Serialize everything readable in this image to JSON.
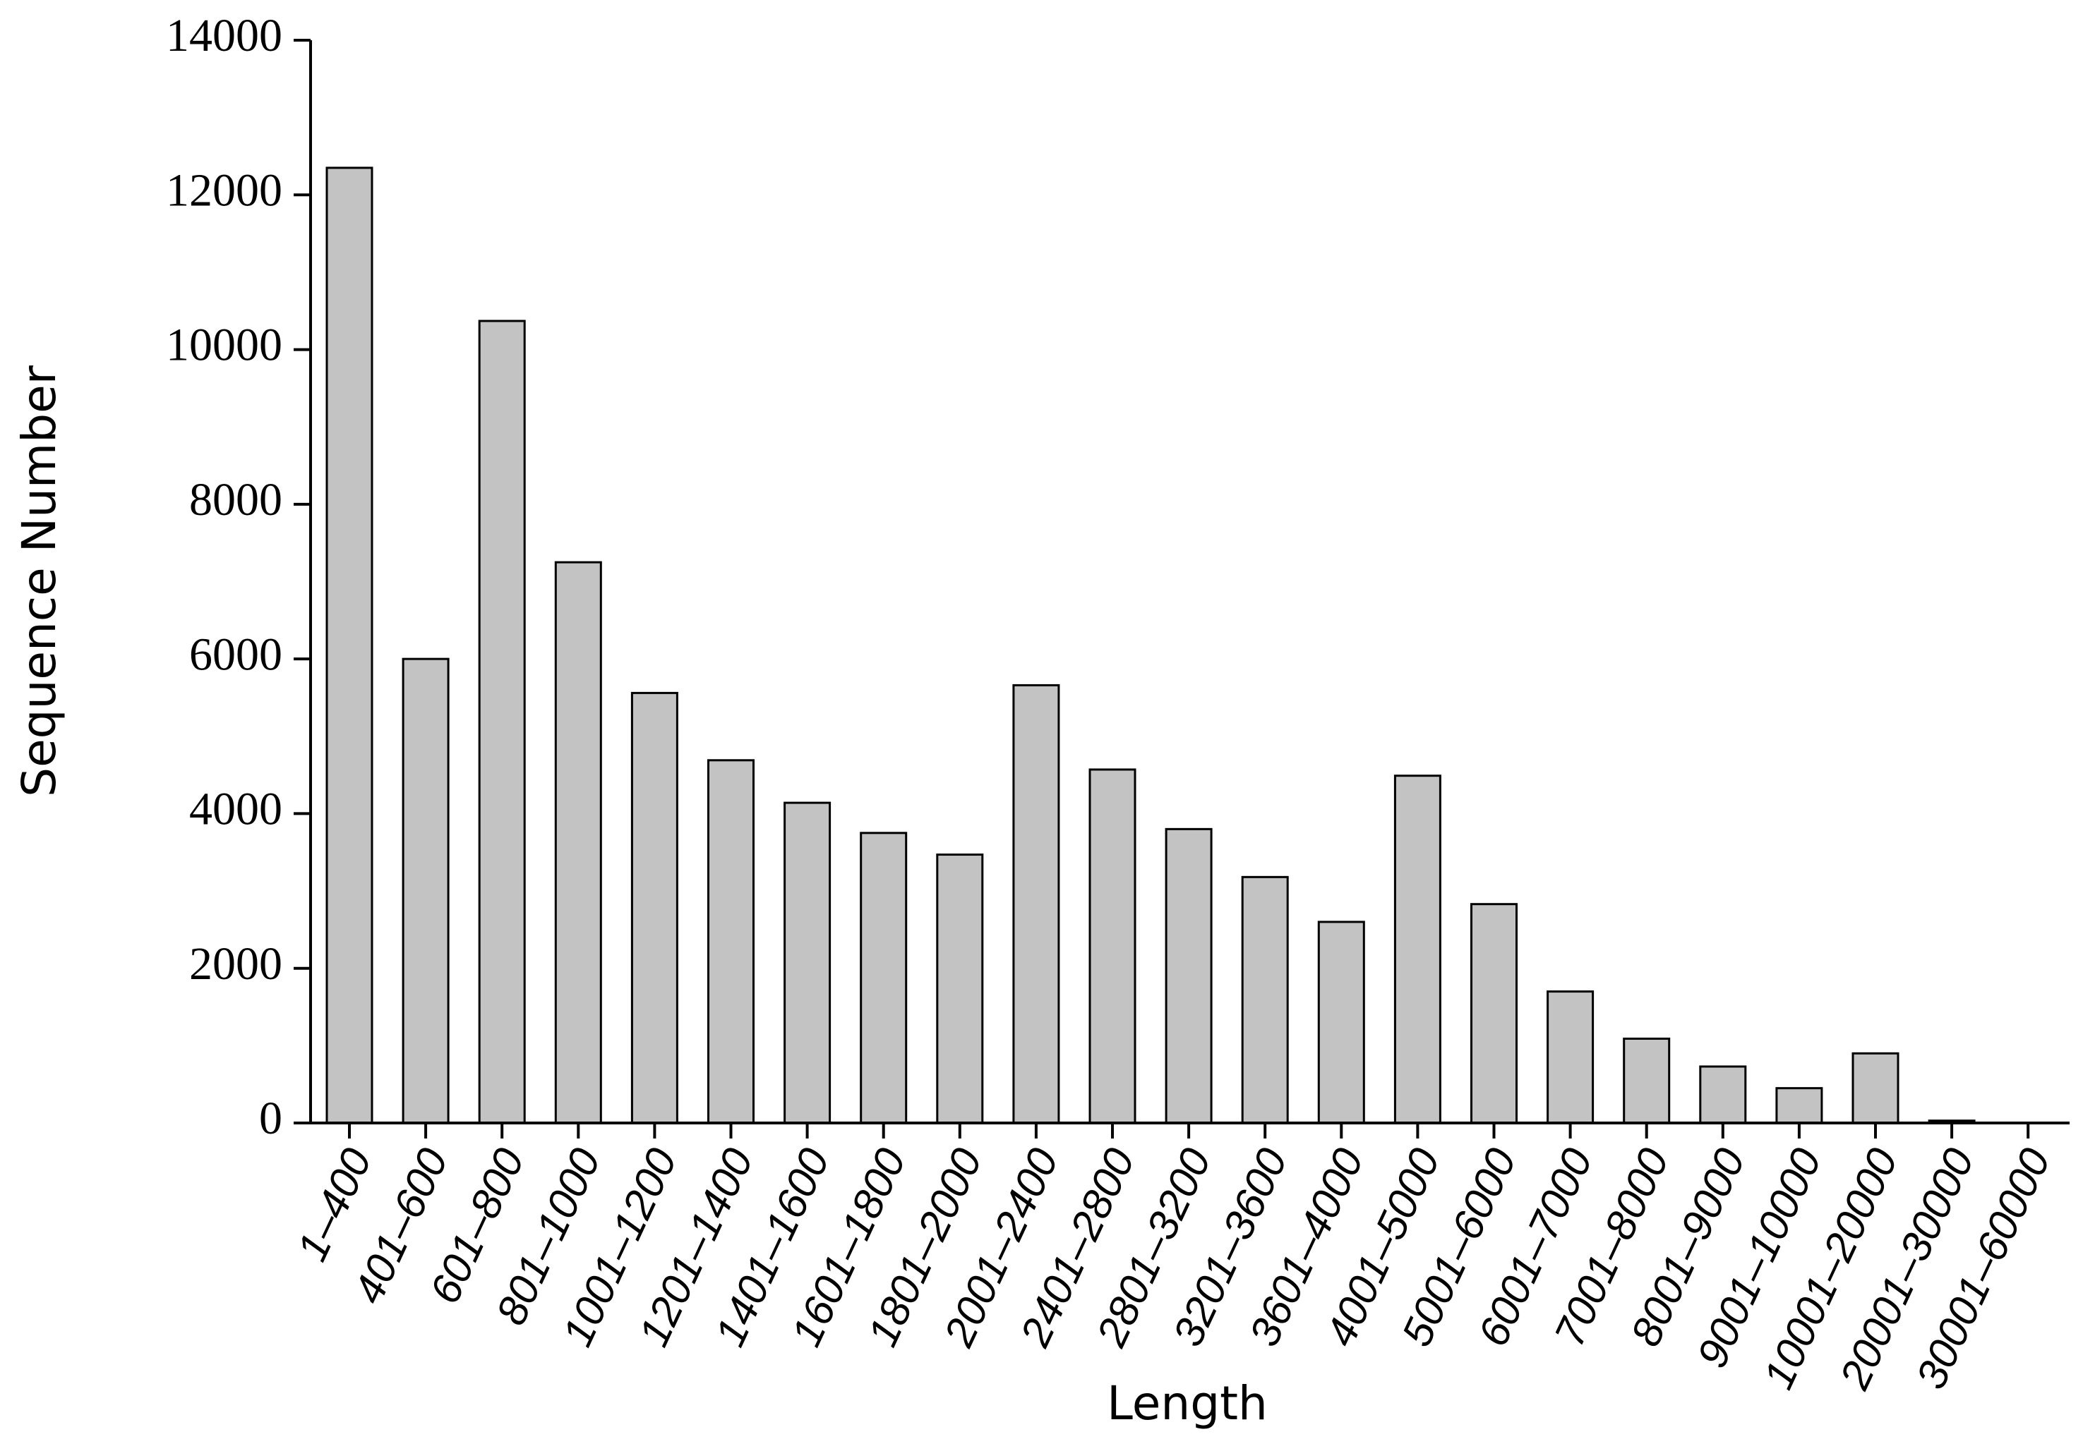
{
  "chart_data": {
    "type": "bar",
    "x_label": "Length",
    "y_label": "Sequence Number",
    "categories": [
      "1–400",
      "401–600",
      "601–800",
      "801–1000",
      "1001–1200",
      "1201–1400",
      "1401–1600",
      "1601–1800",
      "1801–2000",
      "2001–2400",
      "2401–2800",
      "2801–3200",
      "3201–3600",
      "3601–4000",
      "4001–5000",
      "5001–6000",
      "6001–7000",
      "7001–8000",
      "8001–9000",
      "9001–10000",
      "10001–20000",
      "20001–30000",
      "30001–60000"
    ],
    "values": [
      12350,
      6000,
      10370,
      7250,
      5560,
      4690,
      4140,
      3750,
      3470,
      5660,
      4570,
      3800,
      3180,
      2600,
      4490,
      2830,
      1700,
      1090,
      730,
      450,
      900,
      30,
      0
    ],
    "color": "#c3c3c3",
    "ylim": [
      0,
      14000
    ],
    "yticks": [
      0,
      2000,
      4000,
      6000,
      8000,
      10000,
      12000,
      14000
    ]
  }
}
